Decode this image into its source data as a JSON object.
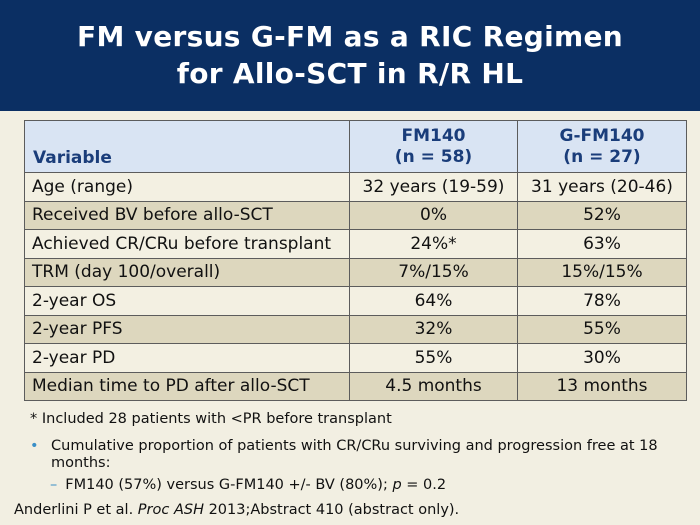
{
  "title": {
    "line1": "FM versus G-FM as a RIC Regimen",
    "line2": "for Allo-SCT in R/R HL"
  },
  "table": {
    "headers": {
      "variable": "Variable",
      "col1_name": "FM140",
      "col1_n": "(n = 58)",
      "col2_name": "G-FM140",
      "col2_n": "(n = 27)"
    },
    "rows": [
      {
        "label": "Age (range)",
        "fm140": "32 years (19-59)",
        "gfm140": "31 years (20-46)"
      },
      {
        "label": "Received BV before allo-SCT",
        "fm140": "0%",
        "gfm140": "52%"
      },
      {
        "label": "Achieved CR/CRu before transplant",
        "fm140": "24%*",
        "gfm140": "63%"
      },
      {
        "label": "TRM (day 100/overall)",
        "fm140": "7%/15%",
        "gfm140": "15%/15%"
      },
      {
        "label": "2-year OS",
        "fm140": "64%",
        "gfm140": "78%"
      },
      {
        "label": "2-year PFS",
        "fm140": "32%",
        "gfm140": "55%"
      },
      {
        "label": "2-year PD",
        "fm140": "55%",
        "gfm140": "30%"
      },
      {
        "label": "Median time to PD after allo-SCT",
        "fm140": "4.5 months",
        "gfm140": "13 months"
      }
    ]
  },
  "footnote": "* Included 28 patients with <PR before transplant",
  "bullet": {
    "symbol": "•",
    "text": "Cumulative proportion of patients with CR/CRu surviving and progression free at 18 months:"
  },
  "subbullet": {
    "symbol": "–",
    "text_before": "FM140 (57%) versus G-FM140 +/- BV (80%); ",
    "p_label": "p",
    "text_after": " = 0.2"
  },
  "citation": {
    "authors": "Anderlini P et al. ",
    "journal": "Proc ASH",
    "rest": " 2013;Abstract 410 (abstract only)."
  }
}
